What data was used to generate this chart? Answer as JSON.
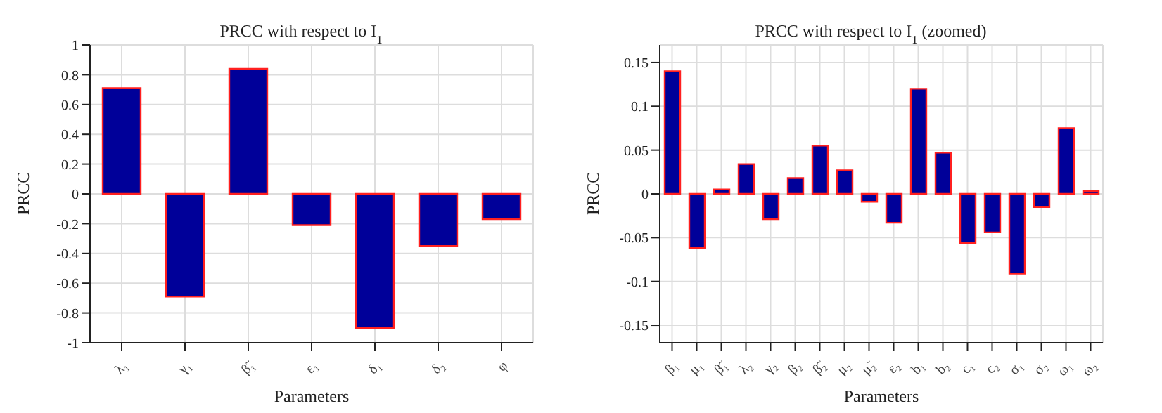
{
  "chart_data": [
    {
      "type": "bar",
      "title": "PRCC with respect to I$_{1}$",
      "xlabel": "Parameters",
      "ylabel": "PRCC",
      "categories": [
        "λ₁",
        "γ₁",
        "β̃₁",
        "ε₁",
        "δ₁",
        "δ₂",
        "φ"
      ],
      "values": [
        0.71,
        -0.69,
        0.84,
        -0.21,
        -0.9,
        -0.35,
        -0.17
      ],
      "color": "#000099",
      "ylim": [
        -1,
        1
      ],
      "yticks": [
        -1,
        -0.8,
        -0.6,
        -0.4,
        -0.2,
        0,
        0.2,
        0.4,
        0.6,
        0.8,
        1
      ],
      "grid": true
    },
    {
      "type": "bar",
      "title": "PRCC with respect to I$_{1}$ (zoomed)",
      "xlabel": "Parameters",
      "ylabel": "PRCC",
      "categories": [
        "β₁",
        "μ₁",
        "β̃₁",
        "λ₂",
        "γ₂",
        "β₂",
        "β̃₂",
        "μ₂",
        "μ̃₂",
        "ε₂",
        "b₁",
        "b₂",
        "c₁",
        "c₂",
        "σ₁",
        "σ₂",
        "ω₁",
        "ω₂"
      ],
      "values": [
        0.14,
        -0.062,
        0.005,
        0.034,
        -0.029,
        0.018,
        0.055,
        0.027,
        -0.009,
        -0.033,
        0.12,
        0.047,
        -0.056,
        -0.044,
        -0.091,
        -0.015,
        0.075,
        0.003
      ],
      "color": "#000099",
      "ylim": [
        -0.17,
        0.17
      ],
      "yticks": [
        -0.15,
        -0.1,
        -0.05,
        0,
        0.05,
        0.1,
        0.15
      ],
      "grid": true
    }
  ]
}
